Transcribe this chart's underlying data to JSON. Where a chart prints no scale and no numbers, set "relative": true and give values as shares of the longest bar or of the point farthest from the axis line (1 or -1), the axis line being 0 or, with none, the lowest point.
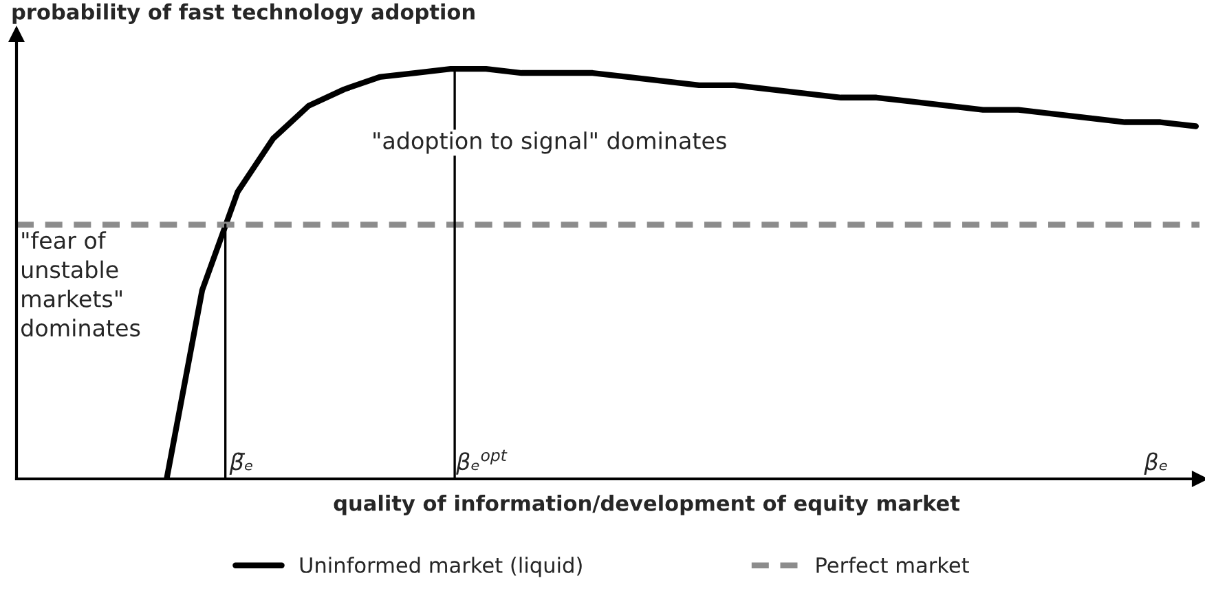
{
  "chart_data": {
    "type": "line",
    "relative": true,
    "ylabel": "probability of fast technology adoption",
    "xlabel": "quality of information/development of equity market",
    "categories": [
      null,
      null,
      null,
      null,
      null,
      null,
      null,
      null,
      null,
      null,
      null,
      null,
      null,
      null,
      null,
      null,
      null,
      null,
      null,
      null,
      null,
      null,
      null,
      null,
      null,
      null,
      null,
      null,
      null,
      null
    ],
    "series": [
      {
        "name": "Uninformed market (liquid)",
        "color": "#000000",
        "values": [
          0,
          0.46,
          0.7,
          0.83,
          0.91,
          0.95,
          0.98,
          0.99,
          1.0,
          1.0,
          0.99,
          0.99,
          0.99,
          0.98,
          0.97,
          0.96,
          0.96,
          0.95,
          0.94,
          0.93,
          0.93,
          0.92,
          0.91,
          0.9,
          0.9,
          0.89,
          0.88,
          0.87,
          0.87,
          0.86
        ]
      }
    ],
    "ref_lines": [
      {
        "axis": "y",
        "value": 0.62,
        "label": "Perfect market",
        "color": "#8c8c8c",
        "line_style": "dashed"
      }
    ],
    "annotations": [
      "\"adoption to signal\" dominates",
      "\"fear of\nunstable\nmarkets\"\ndominates",
      "β̄ₑ",
      "βₑ$^{opt}$",
      "βₑ"
    ],
    "line_style": "solid",
    "marker": "none",
    "grid": false,
    "legend": "bottom"
  }
}
